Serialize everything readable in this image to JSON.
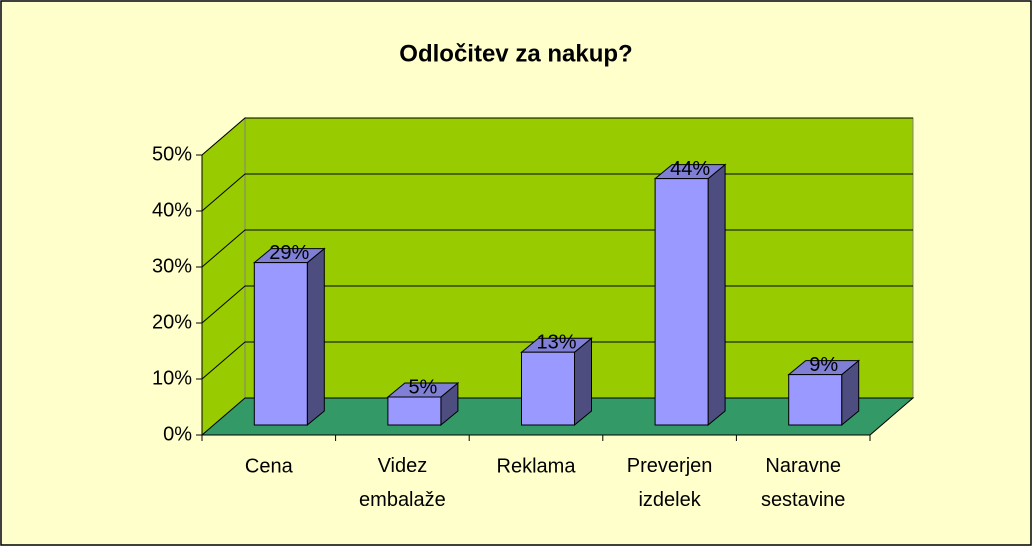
{
  "chart_data": {
    "type": "bar3d",
    "title": "Odločitev za nakup?",
    "categories": [
      "Cena",
      "Videz embalaže",
      "Reklama",
      "Preverjen izdelek",
      "Naravne sestavine"
    ],
    "values": [
      29,
      5,
      13,
      44,
      9
    ],
    "value_labels": [
      "29%",
      "5%",
      "13%",
      "44%",
      "9%"
    ],
    "color": "#9999ff",
    "ylim": [
      0,
      50
    ],
    "yticks": [
      {
        "value": 0,
        "label": "0%"
      },
      {
        "value": 10,
        "label": "10%"
      },
      {
        "value": 20,
        "label": "20%"
      },
      {
        "value": 30,
        "label": "30%"
      },
      {
        "value": 40,
        "label": "40%"
      },
      {
        "value": 50,
        "label": "50%"
      }
    ],
    "grid": true
  }
}
